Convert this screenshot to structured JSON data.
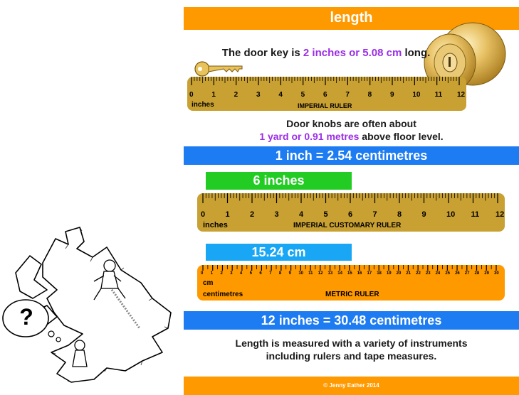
{
  "title": "length",
  "key_sentence": {
    "before": "The door key is ",
    "highlight": "2 inches or 5.08 cm",
    "after": " long."
  },
  "imperial_ruler_small": {
    "numbers": [
      "0",
      "1",
      "2",
      "3",
      "4",
      "5",
      "6",
      "7",
      "8",
      "9",
      "10",
      "11",
      "12"
    ],
    "unit_label": "inches",
    "caption": "IMPERIAL RULER"
  },
  "knob_sentence": {
    "line1": "Door knobs are often about",
    "highlight": "1 yard or 0.91 metres",
    "after": " above floor level."
  },
  "conversion1": "1 inch = 2.54 centimetres",
  "green_label": "6 inches",
  "imperial_ruler_large": {
    "numbers": [
      "0",
      "1",
      "2",
      "3",
      "4",
      "5",
      "6",
      "7",
      "8",
      "9",
      "10",
      "11",
      "12"
    ],
    "unit_label": "inches",
    "caption": "IMPERIAL CUSTOMARY  RULER"
  },
  "cyan_label": "15.24 cm",
  "metric_ruler": {
    "numbers": [
      "0",
      "1",
      "2",
      "3",
      "4",
      "5",
      "6",
      "7",
      "8",
      "9",
      "10",
      "11",
      "12",
      "13",
      "14",
      "15",
      "16",
      "17",
      "18",
      "19",
      "20",
      "21",
      "22",
      "23",
      "24",
      "25",
      "26",
      "27",
      "28",
      "29",
      "30"
    ],
    "short_unit": "cm",
    "unit_label": "centimetres",
    "caption": "METRIC RULER"
  },
  "conversion2": "12 inches = 30.48 centimetres",
  "closing": {
    "line1": "Length is measured with a variety of instruments",
    "line2": "including rulers and tape measures."
  },
  "footer": "© Jenny Eather 2014",
  "thought_bubble": "?",
  "colors": {
    "orange": "#ff9900",
    "blue": "#1e7cf2",
    "green": "#22cc22",
    "cyan": "#19a7f5",
    "purple": "#9b2ee6",
    "ruler_gold": "#c9a032",
    "ruler_orange": "#ff9900"
  }
}
